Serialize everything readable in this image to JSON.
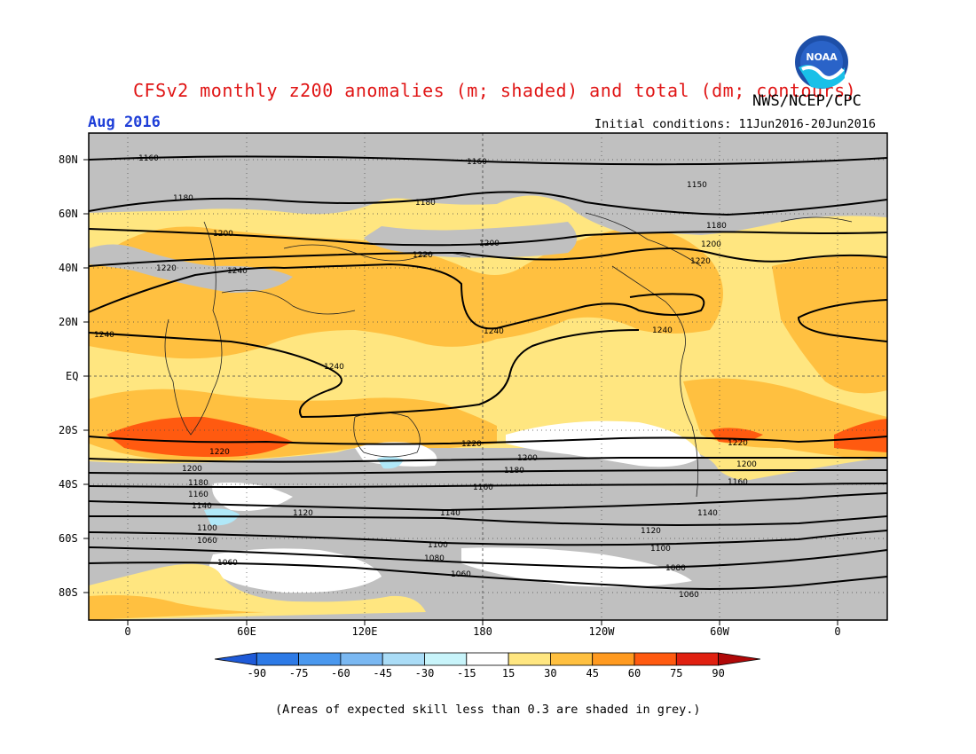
{
  "header": {
    "title": "CFSv2 monthly z200 anomalies (m; shaded) and total (dm; contours)",
    "agency": "NWS/NCEP/CPC",
    "month": "Aug 2016",
    "initial_conditions": "Initial conditions: 11Jun2016-20Jun2016",
    "logo_text": "NOAA"
  },
  "map": {
    "lat_labels": [
      "80N",
      "60N",
      "40N",
      "20N",
      "EQ",
      "20S",
      "40S",
      "60S",
      "80S"
    ],
    "lon_labels": [
      "0",
      "60E",
      "120E",
      "180",
      "120W",
      "60W",
      "0"
    ],
    "contour_labels": [
      "1160",
      "1160",
      "1150",
      "1180",
      "1180",
      "1180",
      "1200",
      "1200",
      "1200",
      "1220",
      "1220",
      "1220",
      "1240",
      "1240",
      "1240",
      "1240",
      "1240",
      "1220",
      "1220",
      "1220",
      "1200",
      "1200",
      "1200",
      "1180",
      "1180",
      "1160",
      "1160",
      "1160",
      "1140",
      "1140",
      "1140",
      "1120",
      "1120",
      "1100",
      "1100",
      "1100",
      "1060",
      "1080",
      "1080",
      "1060",
      "1060",
      "1060"
    ],
    "colors": {
      "grey": "#c0c0c0",
      "yellow": "#ffe680",
      "orange": "#ffc040",
      "dark_orange": "#ff9a20",
      "red_orange": "#ff5a10",
      "white": "#ffffff",
      "light_blue": "#b0e8f8"
    }
  },
  "colorbar": {
    "ticks": [
      "-90",
      "-75",
      "-60",
      "-45",
      "-30",
      "-15",
      "15",
      "30",
      "45",
      "60",
      "75",
      "90"
    ],
    "colors": [
      "#1e5ad8",
      "#2d7ae6",
      "#4a98ee",
      "#7ab8f2",
      "#aadcf6",
      "#c8f4fa",
      "#ffffff",
      "#ffe680",
      "#ffc040",
      "#ff9a20",
      "#ff5a10",
      "#e02010",
      "#b00808"
    ]
  },
  "footnote": "(Areas of expected skill less than 0.3 are shaded in grey.)"
}
